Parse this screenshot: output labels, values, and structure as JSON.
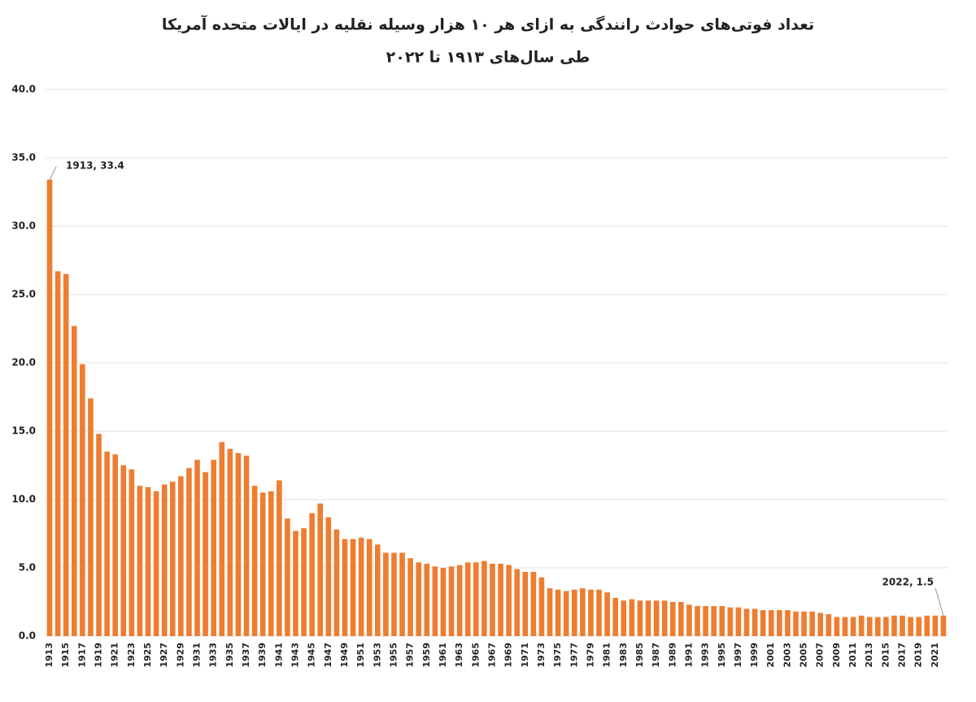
{
  "chart_data": {
    "type": "bar",
    "title": "تعداد فوتی‌های حوادث رانندگی به ازای هر ۱۰ هزار وسیله نقلیه در ایالات متحده آمریکا",
    "subtitle": "طی سال‌های ۱۹۱۳ تا ۲۰۲۲",
    "categories": [
      "1913",
      null,
      "1915",
      null,
      "1917",
      null,
      "1919",
      null,
      "1921",
      null,
      "1923",
      null,
      "1925",
      null,
      "1927",
      null,
      "1929",
      null,
      "1931",
      null,
      "1933",
      null,
      "1935",
      null,
      "1937",
      null,
      "1939",
      null,
      "1941",
      null,
      "1943",
      null,
      "1945",
      null,
      "1947",
      null,
      "1949",
      null,
      "1951",
      null,
      "1953",
      null,
      "1955",
      null,
      "1957",
      null,
      "1959",
      null,
      "1961",
      null,
      "1963",
      null,
      "1965",
      null,
      "1967",
      null,
      "1969",
      null,
      "1971",
      null,
      "1973",
      null,
      "1975",
      null,
      "1977",
      null,
      "1979",
      null,
      "1981",
      null,
      "1983",
      null,
      "1985",
      null,
      "1987",
      null,
      "1989",
      null,
      "1991",
      null,
      "1993",
      null,
      "1995",
      null,
      "1997",
      null,
      "1999",
      null,
      "2001",
      null,
      "2003",
      null,
      "2005",
      null,
      "2007",
      null,
      "2009",
      null,
      "2011",
      null,
      "2013",
      null,
      "2015",
      null,
      "2017",
      null,
      "2019",
      null,
      "2021",
      null
    ],
    "values": [
      33.4,
      26.7,
      26.5,
      22.7,
      19.9,
      17.4,
      14.8,
      13.5,
      13.3,
      12.5,
      12.2,
      11.0,
      10.9,
      10.6,
      11.1,
      11.3,
      11.7,
      12.3,
      12.9,
      12.0,
      12.9,
      14.2,
      13.7,
      13.4,
      13.2,
      11.0,
      10.5,
      10.6,
      11.4,
      8.6,
      7.7,
      7.9,
      9.0,
      9.7,
      8.7,
      7.8,
      7.1,
      7.1,
      7.2,
      7.1,
      6.7,
      6.1,
      6.1,
      6.1,
      5.7,
      5.4,
      5.3,
      5.1,
      5.0,
      5.1,
      5.2,
      5.4,
      5.4,
      5.5,
      5.3,
      5.3,
      5.2,
      4.9,
      4.7,
      4.7,
      4.3,
      3.5,
      3.4,
      3.3,
      3.4,
      3.5,
      3.4,
      3.4,
      3.2,
      2.8,
      2.6,
      2.7,
      2.6,
      2.6,
      2.6,
      2.6,
      2.5,
      2.5,
      2.3,
      2.2,
      2.2,
      2.2,
      2.2,
      2.1,
      2.1,
      2.0,
      2.0,
      1.9,
      1.9,
      1.9,
      1.9,
      1.8,
      1.8,
      1.8,
      1.7,
      1.6,
      1.4,
      1.4,
      1.4,
      1.5,
      1.4,
      1.4,
      1.4,
      1.5,
      1.5,
      1.4,
      1.4,
      1.5,
      1.5,
      1.5
    ],
    "color": "#ed7d31",
    "ylim": [
      0,
      40
    ],
    "yticks": [
      {
        "value": 0,
        "label": "0.0"
      },
      {
        "value": 5,
        "label": "5.0"
      },
      {
        "value": 10,
        "label": "10.0"
      },
      {
        "value": 15,
        "label": "15.0"
      },
      {
        "value": 20,
        "label": "20.0"
      },
      {
        "value": 25,
        "label": "25.0"
      },
      {
        "value": 30,
        "label": "30.0"
      },
      {
        "value": 35,
        "label": "35.0"
      },
      {
        "value": 40,
        "label": "40.0"
      }
    ],
    "grid": true,
    "annotations": [
      "1913, 33.4",
      "2022, 1.5"
    ]
  }
}
